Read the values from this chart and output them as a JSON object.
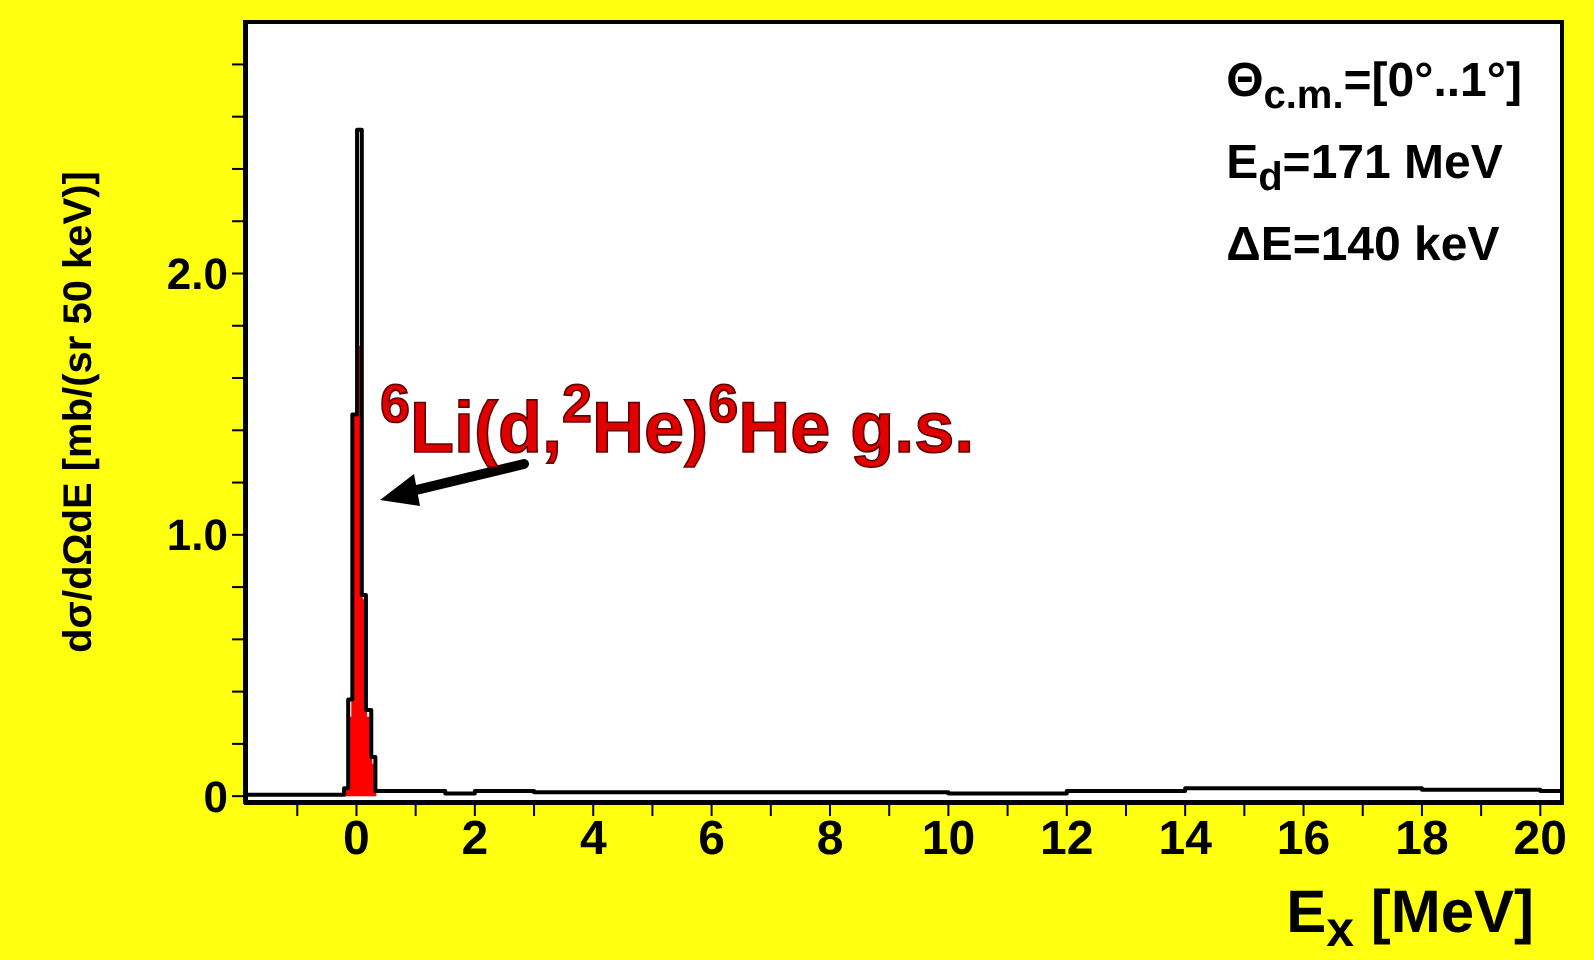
{
  "chart_data": {
    "type": "step",
    "xlabel": "E$_{x}$ [MeV]",
    "ylabel": "dσ/dΩdE [mb/(sr 50 keV)]",
    "xlim": [
      -1.9,
      20.4
    ],
    "xticks": [
      {
        "value": -1,
        "label": null
      },
      0,
      {
        "value": 1,
        "label": null
      },
      2,
      {
        "value": 3,
        "label": null
      },
      4,
      {
        "value": 5,
        "label": null
      },
      6,
      {
        "value": 7,
        "label": null
      },
      8,
      {
        "value": 9,
        "label": null
      },
      10,
      {
        "value": 11,
        "label": null
      },
      12,
      {
        "value": 13,
        "label": null
      },
      14,
      {
        "value": 15,
        "label": null
      },
      16,
      {
        "value": 17,
        "label": null
      },
      18,
      {
        "value": 19,
        "label": null
      },
      20
    ],
    "ylim": [
      -0.03,
      2.97
    ],
    "yticks": [
      0,
      {
        "value": 0.2,
        "label": null
      },
      {
        "value": 0.4,
        "label": null
      },
      {
        "value": 0.6,
        "label": null
      },
      {
        "value": 0.8,
        "label": null
      },
      {
        "value": 1,
        "label": "1.0"
      },
      {
        "value": 1.2,
        "label": null
      },
      {
        "value": 1.4,
        "label": null
      },
      {
        "value": 1.6,
        "label": null
      },
      {
        "value": 1.8,
        "label": null
      },
      {
        "value": 2,
        "label": "2.0"
      },
      {
        "value": 2.2,
        "label": null
      },
      {
        "value": 2.4,
        "label": null
      },
      {
        "value": 2.6,
        "label": null
      },
      {
        "value": 2.8,
        "label": null
      }
    ],
    "series": [
      {
        "color": "#000000",
        "x": [
          -1.9,
          -0.3,
          -0.21,
          -0.14,
          -0.07,
          0.01,
          0.09,
          0.16,
          0.25,
          0.32,
          1.5,
          2.0,
          3.0,
          6.0,
          10.0,
          12.0,
          14.0,
          16.0,
          18.0,
          20.0,
          20.4
        ],
        "values": [
          0.005,
          0.005,
          0.03,
          0.37,
          1.46,
          2.55,
          0.77,
          0.33,
          0.15,
          0.02,
          0.01,
          0.02,
          0.015,
          0.015,
          0.01,
          0.02,
          0.03,
          0.03,
          0.025,
          0.02,
          0.02
        ]
      },
      {
        "type": "area",
        "color": "#ff0000",
        "x": [
          -0.21,
          -0.14,
          -0.07,
          0.01,
          0.09,
          0.16,
          0.25,
          0.32
        ],
        "values": [
          0.03,
          0.3,
          1.45,
          1.72,
          0.75,
          0.3,
          0.12,
          0
        ]
      }
    ],
    "annotations": [
      "$^{6}$Li(d,$^{2}$He)$^{6}$He g.s.",
      "Θ$_{c.m.}$=[0°..1°]",
      "E$_{d}$=171 MeV",
      "ΔE=140 keV"
    ]
  }
}
